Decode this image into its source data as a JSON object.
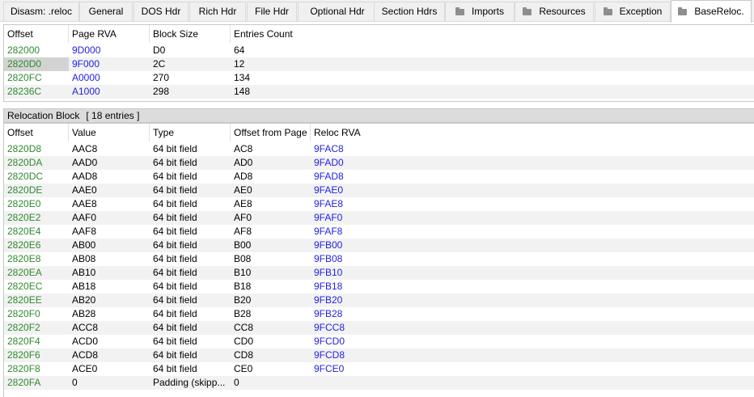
{
  "tabs": [
    {
      "label": "Disasm: .reloc",
      "icon": ""
    },
    {
      "label": "General",
      "icon": ""
    },
    {
      "label": "DOS Hdr",
      "icon": ""
    },
    {
      "label": "Rich Hdr",
      "icon": ""
    },
    {
      "label": "File Hdr",
      "icon": ""
    },
    {
      "label": "Optional Hdr",
      "icon": ""
    },
    {
      "label": "Section Hdrs",
      "icon": ""
    },
    {
      "label": "Imports",
      "icon": "folder-icon"
    },
    {
      "label": "Resources",
      "icon": "folder-icon"
    },
    {
      "label": "Exception",
      "icon": "folder-icon"
    },
    {
      "label": "BaseReloc.",
      "icon": "folder-icon"
    }
  ],
  "active_tab": "BaseReloc.",
  "colors": {
    "offset_green": "#2e8b2e",
    "rva_blue": "#1f1fe0"
  },
  "blocks_table": {
    "headers": [
      "Offset",
      "Page RVA",
      "Block Size",
      "Entries Count"
    ],
    "rows": [
      [
        "282000",
        "9D000",
        "D0",
        "64"
      ],
      [
        "2820D0",
        "9F000",
        "2C",
        "12"
      ],
      [
        "2820FC",
        "A0000",
        "270",
        "134"
      ],
      [
        "28236C",
        "A1000",
        "298",
        "148"
      ]
    ],
    "selected_row": 1
  },
  "relocation_block": {
    "title": "Relocation Block",
    "entries_label": "[ 18 entries ]"
  },
  "entries_table": {
    "headers": [
      "Offset",
      "Value",
      "Type",
      "Offset from Page",
      "Reloc RVA"
    ],
    "rows": [
      [
        "2820D8",
        "AAC8",
        "64 bit field",
        "AC8",
        "9FAC8"
      ],
      [
        "2820DA",
        "AAD0",
        "64 bit field",
        "AD0",
        "9FAD0"
      ],
      [
        "2820DC",
        "AAD8",
        "64 bit field",
        "AD8",
        "9FAD8"
      ],
      [
        "2820DE",
        "AAE0",
        "64 bit field",
        "AE0",
        "9FAE0"
      ],
      [
        "2820E0",
        "AAE8",
        "64 bit field",
        "AE8",
        "9FAE8"
      ],
      [
        "2820E2",
        "AAF0",
        "64 bit field",
        "AF0",
        "9FAF0"
      ],
      [
        "2820E4",
        "AAF8",
        "64 bit field",
        "AF8",
        "9FAF8"
      ],
      [
        "2820E6",
        "AB00",
        "64 bit field",
        "B00",
        "9FB00"
      ],
      [
        "2820E8",
        "AB08",
        "64 bit field",
        "B08",
        "9FB08"
      ],
      [
        "2820EA",
        "AB10",
        "64 bit field",
        "B10",
        "9FB10"
      ],
      [
        "2820EC",
        "AB18",
        "64 bit field",
        "B18",
        "9FB18"
      ],
      [
        "2820EE",
        "AB20",
        "64 bit field",
        "B20",
        "9FB20"
      ],
      [
        "2820F0",
        "AB28",
        "64 bit field",
        "B28",
        "9FB28"
      ],
      [
        "2820F2",
        "ACC8",
        "64 bit field",
        "CC8",
        "9FCC8"
      ],
      [
        "2820F4",
        "ACD0",
        "64 bit field",
        "CD0",
        "9FCD0"
      ],
      [
        "2820F6",
        "ACD8",
        "64 bit field",
        "CD8",
        "9FCD8"
      ],
      [
        "2820F8",
        "ACE0",
        "64 bit field",
        "CE0",
        "9FCE0"
      ],
      [
        "2820FA",
        "0",
        "Padding (skipp...",
        "0",
        ""
      ]
    ]
  }
}
